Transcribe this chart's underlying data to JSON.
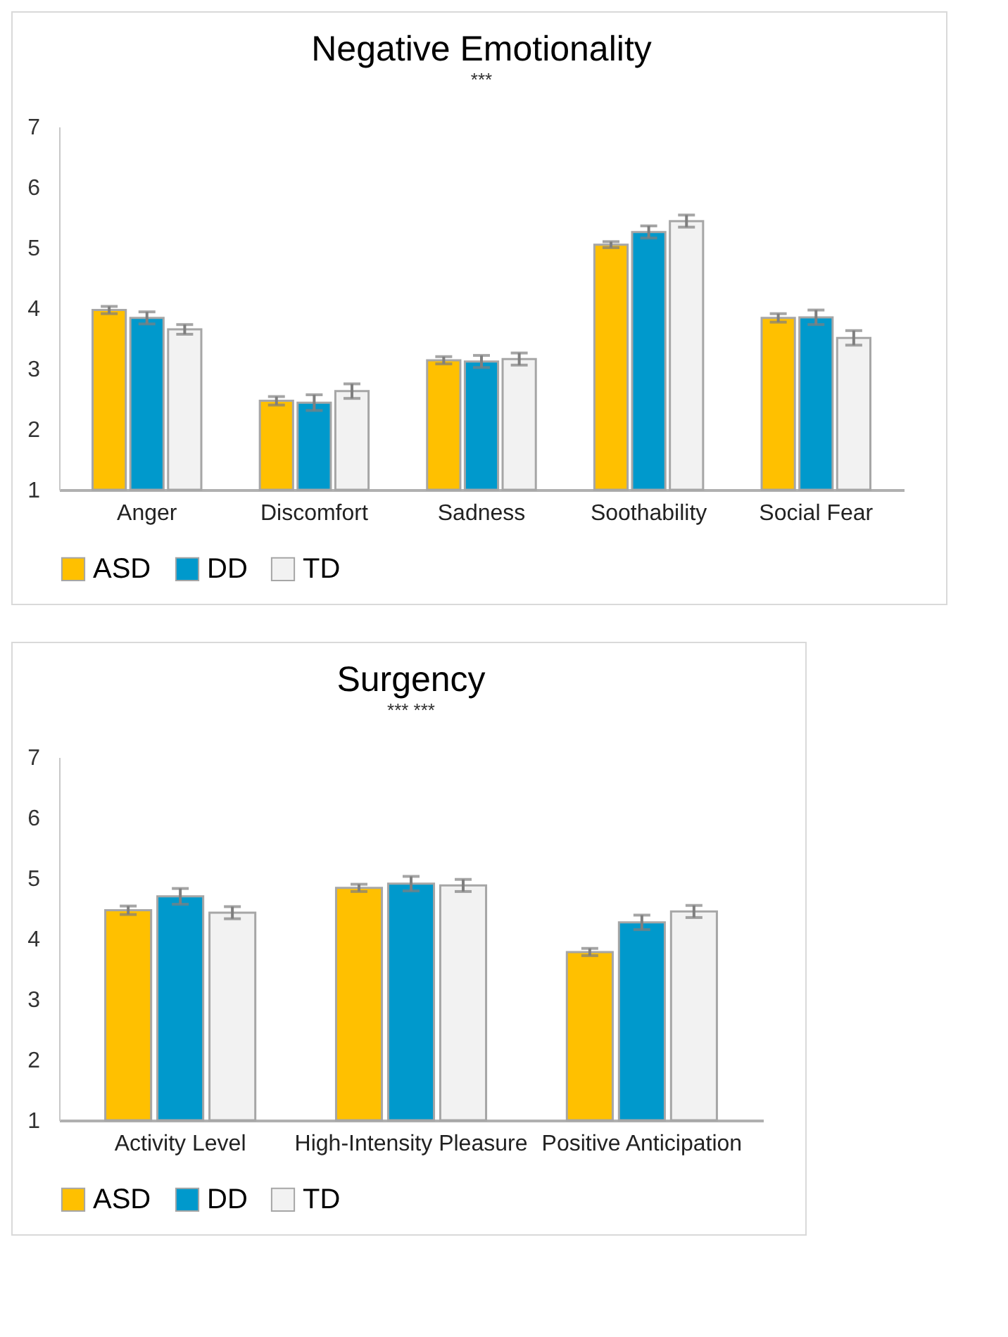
{
  "chart_data": [
    {
      "type": "bar",
      "title": "Negative Emotionality",
      "categories": [
        "Anger",
        "Discomfort",
        "Sadness",
        "Soothability",
        "Social Fear"
      ],
      "ylim": [
        1,
        7
      ],
      "yticks": [
        1,
        2,
        3,
        4,
        5,
        6,
        7
      ],
      "grid": false,
      "legend": "bottom",
      "series": [
        {
          "name": "ASD",
          "color": "#ffc000",
          "values": [
            3.97,
            2.47,
            3.14,
            5.05,
            3.84
          ],
          "errors": [
            0.06,
            0.07,
            0.06,
            0.05,
            0.07
          ]
        },
        {
          "name": "DD",
          "color": "#0099cc",
          "values": [
            3.84,
            2.44,
            3.12,
            5.26,
            3.85
          ],
          "errors": [
            0.1,
            0.13,
            0.1,
            0.1,
            0.12
          ]
        },
        {
          "name": "TD",
          "color": "#f2f2f2",
          "values": [
            3.65,
            2.63,
            3.16,
            5.44,
            3.51
          ],
          "errors": [
            0.08,
            0.12,
            0.1,
            0.1,
            0.12
          ]
        }
      ],
      "annotations": [
        "***"
      ]
    },
    {
      "type": "bar",
      "title": "Surgency",
      "categories": [
        "Activity Level",
        "High-Intensity Pleasure",
        "Positive Anticipation"
      ],
      "ylim": [
        1,
        7
      ],
      "yticks": [
        1,
        2,
        3,
        4,
        5,
        6,
        7
      ],
      "grid": false,
      "legend": "bottom",
      "series": [
        {
          "name": "ASD",
          "color": "#ffc000",
          "values": [
            4.47,
            4.84,
            3.78
          ],
          "errors": [
            0.07,
            0.06,
            0.06
          ]
        },
        {
          "name": "DD",
          "color": "#0099cc",
          "values": [
            4.7,
            4.91,
            4.27
          ],
          "errors": [
            0.13,
            0.12,
            0.12
          ]
        },
        {
          "name": "TD",
          "color": "#f2f2f2",
          "values": [
            4.43,
            4.88,
            4.45
          ],
          "errors": [
            0.1,
            0.1,
            0.1
          ]
        }
      ],
      "annotations": [
        "***",
        "***"
      ]
    }
  ]
}
